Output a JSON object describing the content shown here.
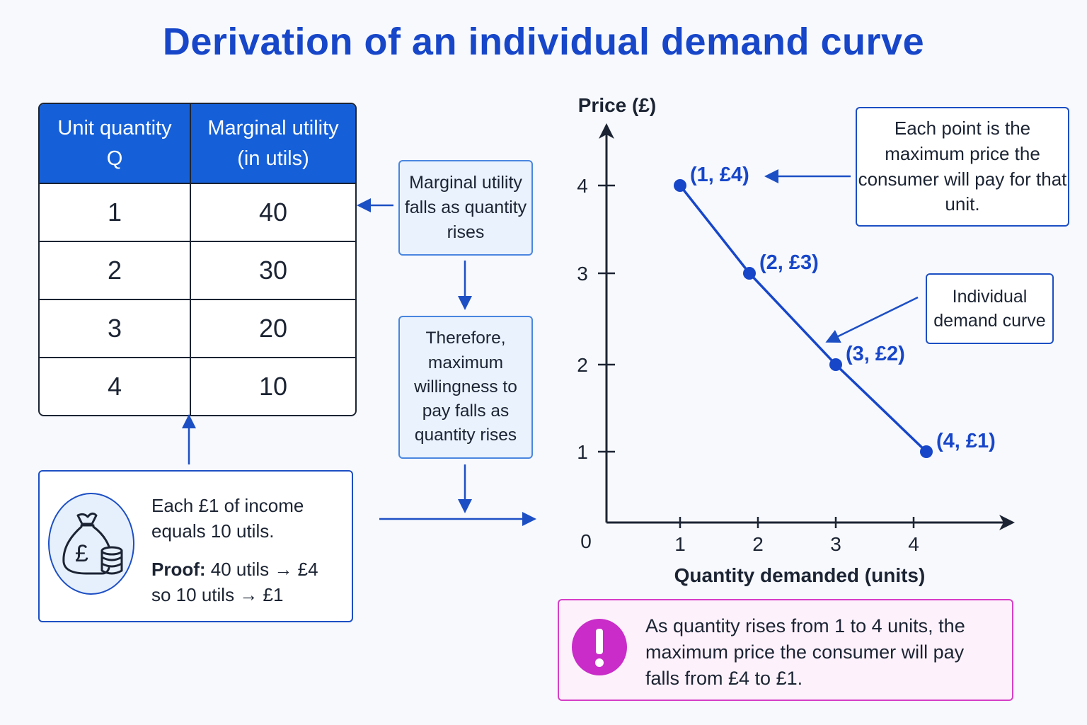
{
  "title": "Derivation of an individual demand curve",
  "table": {
    "headers": [
      "Unit quantity\nQ",
      "Marginal utility\n(in utils)"
    ],
    "rows": [
      {
        "q": "1",
        "mu": "40"
      },
      {
        "q": "2",
        "mu": "30"
      },
      {
        "q": "3",
        "mu": "20"
      },
      {
        "q": "4",
        "mu": "10"
      }
    ]
  },
  "notes": {
    "mu_falls": "Marginal utility falls as quantity rises",
    "wtp_falls": "Therefore, maximum willingness to pay falls as quantity rises"
  },
  "income": {
    "line1": "Each £1 of income equals 10 utils.",
    "proof_label": "Proof:",
    "proof_rest": "40 utils → £4",
    "line3": "so 10 utils → £1",
    "icon": "money-bag-icon"
  },
  "callouts": {
    "max_price": "Each point is the maximum price the consumer will pay for that unit.",
    "curve": "Individual demand curve"
  },
  "summary": {
    "text": "As quantity rises from 1 to 4 units, the maximum price the consumer will pay falls from £4 to £1.",
    "icon": "exclamation-icon",
    "color": "#c92cc8"
  },
  "chart_data": {
    "type": "line",
    "ylabel": "Price (£)",
    "xlabel": "Quantity demanded (units)",
    "origin_label": "0",
    "x_ticks": [
      "1",
      "2",
      "3",
      "4"
    ],
    "y_ticks": [
      "1",
      "2",
      "3",
      "4"
    ],
    "x": [
      1,
      2,
      3,
      4
    ],
    "y": [
      4,
      3,
      2,
      1
    ],
    "point_labels": [
      "(1, £4)",
      "(2, £3)",
      "(3, £2)",
      "(4, £1)"
    ],
    "xlim": [
      0,
      4.7
    ],
    "ylim": [
      0,
      4.6
    ],
    "line_color": "#1746c9"
  }
}
